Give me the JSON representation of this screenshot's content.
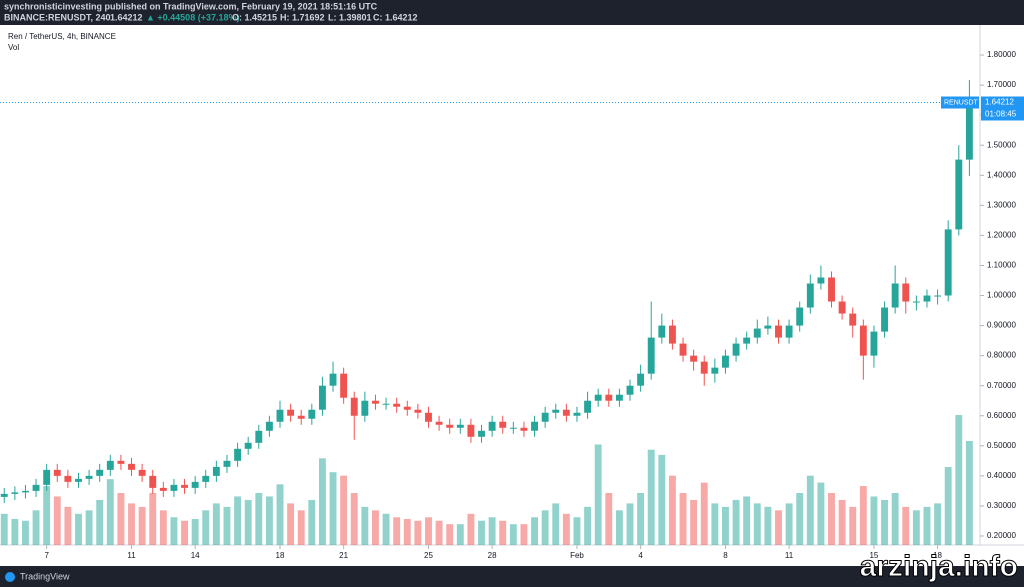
{
  "header": {
    "publisher": "synchronisticinvesting published on TradingView.com, February 19, 2021 18:51:16 UTC",
    "symbol": "BINANCE:RENUSDT, 240",
    "last": "1.64212",
    "change": "▲ +0.44508 (+37.18%)",
    "open": "O: 1.45215",
    "high": "H: 1.71692",
    "low": "L: 1.39801",
    "close": "C: 1.64212"
  },
  "price_tag": {
    "symbol": "RENUSDT",
    "price": "1.64212",
    "countdown": "01:08:45"
  },
  "footer": {
    "brand": "TradingView",
    "watermark": "arzinja.info"
  },
  "chart_data": {
    "type": "candlestick",
    "title": "Ren / TetherUS, 4h, BINANCE",
    "volume_label": "Vol",
    "up_color": "#26a69a",
    "down_color": "#ef5350",
    "x": [
      5,
      5.5,
      6,
      6.5,
      7,
      7.5,
      8,
      8.5,
      9,
      9.5,
      10,
      10.5,
      11,
      11.5,
      12,
      12.5,
      13,
      13.5,
      14,
      14.5,
      15,
      15.5,
      16,
      16.5,
      17,
      17.5,
      18,
      18.5,
      19,
      19.5,
      20,
      20.5,
      21,
      21.5,
      22,
      22.5,
      23,
      23.5,
      24,
      24.5,
      25,
      25.5,
      26,
      26.5,
      27,
      27.5,
      28,
      28.5,
      29,
      29.5,
      30,
      30.5,
      31,
      31.5,
      32,
      32.5,
      33,
      33.5,
      34,
      34.5,
      35,
      35.5,
      36,
      36.5,
      37,
      37.5,
      38,
      38.5,
      39,
      39.5,
      40,
      40.5,
      41,
      41.5,
      42,
      42.5,
      43,
      43.5,
      44,
      44.5,
      45,
      45.5,
      46,
      46.5,
      47,
      47.5,
      48,
      48.5,
      49,
      49.5,
      50,
      50.5
    ],
    "open": [
      0.33,
      0.34,
      0.345,
      0.35,
      0.37,
      0.42,
      0.4,
      0.38,
      0.39,
      0.4,
      0.42,
      0.45,
      0.44,
      0.42,
      0.4,
      0.36,
      0.35,
      0.37,
      0.36,
      0.38,
      0.4,
      0.43,
      0.45,
      0.49,
      0.51,
      0.55,
      0.58,
      0.62,
      0.6,
      0.59,
      0.62,
      0.7,
      0.74,
      0.66,
      0.6,
      0.65,
      0.64,
      0.64,
      0.63,
      0.62,
      0.61,
      0.58,
      0.57,
      0.56,
      0.57,
      0.53,
      0.55,
      0.58,
      0.56,
      0.56,
      0.55,
      0.58,
      0.61,
      0.62,
      0.6,
      0.61,
      0.65,
      0.67,
      0.65,
      0.67,
      0.7,
      0.74,
      0.86,
      0.9,
      0.84,
      0.8,
      0.78,
      0.74,
      0.76,
      0.8,
      0.84,
      0.86,
      0.89,
      0.9,
      0.86,
      0.9,
      0.96,
      1.04,
      1.06,
      0.98,
      0.94,
      0.9,
      0.8,
      0.88,
      0.96,
      1.04,
      0.98,
      0.98,
      1.0,
      1.0,
      1.22,
      1.45215
    ],
    "high": [
      0.36,
      0.365,
      0.37,
      0.39,
      0.44,
      0.44,
      0.42,
      0.41,
      0.42,
      0.44,
      0.47,
      0.47,
      0.46,
      0.44,
      0.42,
      0.38,
      0.39,
      0.39,
      0.4,
      0.42,
      0.45,
      0.47,
      0.51,
      0.53,
      0.57,
      0.6,
      0.65,
      0.64,
      0.62,
      0.64,
      0.73,
      0.78,
      0.76,
      0.68,
      0.68,
      0.67,
      0.66,
      0.66,
      0.65,
      0.64,
      0.63,
      0.6,
      0.59,
      0.59,
      0.59,
      0.57,
      0.6,
      0.6,
      0.58,
      0.58,
      0.6,
      0.63,
      0.64,
      0.64,
      0.63,
      0.68,
      0.69,
      0.69,
      0.69,
      0.72,
      0.77,
      0.98,
      0.94,
      0.92,
      0.86,
      0.82,
      0.8,
      0.79,
      0.82,
      0.86,
      0.88,
      0.92,
      0.93,
      0.92,
      0.92,
      0.98,
      1.07,
      1.1,
      1.08,
      1.0,
      0.96,
      0.92,
      0.9,
      0.98,
      1.1,
      1.06,
      1.0,
      1.02,
      1.02,
      1.25,
      1.5,
      1.71692
    ],
    "low": [
      0.31,
      0.32,
      0.325,
      0.33,
      0.35,
      0.38,
      0.36,
      0.36,
      0.37,
      0.38,
      0.4,
      0.42,
      0.4,
      0.38,
      0.34,
      0.33,
      0.33,
      0.34,
      0.34,
      0.36,
      0.38,
      0.41,
      0.43,
      0.47,
      0.49,
      0.53,
      0.56,
      0.58,
      0.57,
      0.57,
      0.6,
      0.68,
      0.64,
      0.52,
      0.58,
      0.62,
      0.62,
      0.61,
      0.6,
      0.59,
      0.56,
      0.55,
      0.54,
      0.54,
      0.51,
      0.51,
      0.53,
      0.54,
      0.54,
      0.53,
      0.53,
      0.56,
      0.59,
      0.58,
      0.58,
      0.59,
      0.63,
      0.63,
      0.63,
      0.65,
      0.68,
      0.72,
      0.84,
      0.82,
      0.78,
      0.75,
      0.7,
      0.71,
      0.74,
      0.78,
      0.82,
      0.84,
      0.87,
      0.84,
      0.84,
      0.88,
      0.94,
      1.02,
      0.96,
      0.92,
      0.86,
      0.72,
      0.76,
      0.86,
      0.94,
      0.94,
      0.95,
      0.96,
      0.97,
      0.98,
      1.2,
      1.39801
    ],
    "close": [
      0.34,
      0.345,
      0.35,
      0.37,
      0.42,
      0.4,
      0.38,
      0.39,
      0.4,
      0.42,
      0.45,
      0.44,
      0.42,
      0.4,
      0.36,
      0.35,
      0.37,
      0.36,
      0.38,
      0.4,
      0.43,
      0.45,
      0.49,
      0.51,
      0.55,
      0.58,
      0.62,
      0.6,
      0.59,
      0.62,
      0.7,
      0.74,
      0.66,
      0.6,
      0.65,
      0.64,
      0.64,
      0.63,
      0.62,
      0.61,
      0.58,
      0.57,
      0.56,
      0.57,
      0.53,
      0.55,
      0.58,
      0.56,
      0.56,
      0.55,
      0.58,
      0.61,
      0.62,
      0.6,
      0.61,
      0.65,
      0.67,
      0.65,
      0.67,
      0.7,
      0.74,
      0.86,
      0.9,
      0.84,
      0.8,
      0.78,
      0.74,
      0.76,
      0.8,
      0.84,
      0.86,
      0.89,
      0.9,
      0.86,
      0.9,
      0.96,
      1.04,
      1.06,
      0.98,
      0.94,
      0.9,
      0.8,
      0.88,
      0.96,
      1.04,
      0.98,
      0.98,
      1.0,
      1.0,
      1.22,
      1.45215,
      1.64212
    ],
    "volume": [
      18,
      15,
      14,
      20,
      34,
      28,
      22,
      18,
      20,
      26,
      38,
      30,
      24,
      22,
      30,
      20,
      16,
      14,
      15,
      20,
      24,
      22,
      28,
      26,
      30,
      28,
      35,
      24,
      20,
      26,
      50,
      42,
      40,
      30,
      22,
      20,
      18,
      16,
      15,
      14,
      16,
      14,
      12,
      12,
      18,
      14,
      16,
      14,
      12,
      12,
      16,
      20,
      24,
      18,
      16,
      22,
      58,
      30,
      20,
      24,
      30,
      55,
      52,
      40,
      30,
      26,
      36,
      24,
      22,
      26,
      28,
      24,
      22,
      20,
      24,
      30,
      40,
      36,
      30,
      26,
      22,
      34,
      28,
      26,
      30,
      22,
      20,
      22,
      24,
      45,
      75,
      60
    ],
    "ylim": [
      0.17,
      1.9
    ],
    "yticks": [
      {
        "value": 0.2,
        "label": "0.20000"
      },
      {
        "value": 0.3,
        "label": "0.30000"
      },
      {
        "value": 0.4,
        "label": "0.40000"
      },
      {
        "value": 0.5,
        "label": "0.50000"
      },
      {
        "value": 0.6,
        "label": "0.60000"
      },
      {
        "value": 0.7,
        "label": "0.70000"
      },
      {
        "value": 0.8,
        "label": "0.80000"
      },
      {
        "value": 0.9,
        "label": "0.90000"
      },
      {
        "value": 1.0,
        "label": "1.00000"
      },
      {
        "value": 1.1,
        "label": "1.10000"
      },
      {
        "value": 1.2,
        "label": "1.20000"
      },
      {
        "value": 1.3,
        "label": "1.30000"
      },
      {
        "value": 1.4,
        "label": "1.40000"
      },
      {
        "value": 1.5,
        "label": "1.50000"
      },
      {
        "value": 1.6,
        "label": "1.60000"
      },
      {
        "value": 1.7,
        "label": "1.70000"
      },
      {
        "value": 1.8,
        "label": "1.80000"
      }
    ],
    "xlim": [
      4.8,
      51
    ],
    "xticks": [
      7,
      11,
      14,
      18,
      21,
      25,
      28,
      {
        "value": 32,
        "label": "Feb"
      },
      {
        "value": 35,
        "label": "4"
      },
      {
        "value": 39,
        "label": "8"
      },
      {
        "value": 42,
        "label": "11"
      },
      {
        "value": 46,
        "label": "15"
      },
      {
        "value": 49,
        "label": "18"
      }
    ]
  }
}
